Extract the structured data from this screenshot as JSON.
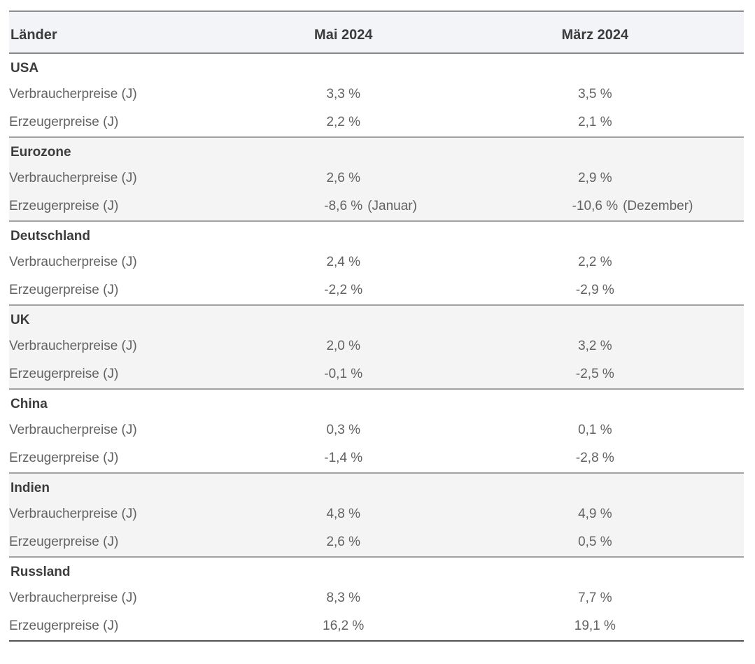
{
  "colors": {
    "header_bg": "#f3f4f8",
    "section_highlight_bg": "#f4f4f4",
    "top_border": "#8c8d90",
    "header_underline": "#85868a",
    "section_divider": "#a2a2a4",
    "bottom_border": "#515254",
    "heading_text": "#3c3c3d",
    "data_text": "#626265"
  },
  "chart_data": {
    "type": "table",
    "columns": [
      "Länder",
      "Mai 2024",
      "März 2024"
    ],
    "sections": [
      {
        "country": "USA",
        "highlighted": false,
        "rows": [
          {
            "label": "Verbraucherpreise (J)",
            "mai": "3,3 %",
            "maerz": "3,5 %"
          },
          {
            "label": "Erzeugerpreise (J)",
            "mai": "2,2 %",
            "maerz": "2,1 %"
          }
        ]
      },
      {
        "country": "Eurozone",
        "highlighted": true,
        "rows": [
          {
            "label": "Verbraucherpreise (J)",
            "mai": "2,6 %",
            "maerz": "2,9 %"
          },
          {
            "label": "Erzeugerpreise (J)",
            "mai": "-8,6 %",
            "mai_note": "(Januar)",
            "maerz": "-10,6 %",
            "maerz_note": "(Dezember)"
          }
        ]
      },
      {
        "country": "Deutschland",
        "highlighted": false,
        "rows": [
          {
            "label": "Verbraucherpreise (J)",
            "mai": "2,4 %",
            "maerz": "2,2 %"
          },
          {
            "label": "Erzeugerpreise (J)",
            "mai": "-2,2 %",
            "maerz": "-2,9 %"
          }
        ]
      },
      {
        "country": "UK",
        "highlighted": true,
        "rows": [
          {
            "label": "Verbraucherpreise (J)",
            "mai": "2,0 %",
            "maerz": "3,2 %"
          },
          {
            "label": "Erzeugerpreise (J)",
            "mai": "-0,1 %",
            "maerz": "-2,5 %"
          }
        ]
      },
      {
        "country": "China",
        "highlighted": false,
        "rows": [
          {
            "label": "Verbraucherpreise (J)",
            "mai": "0,3 %",
            "maerz": "0,1 %"
          },
          {
            "label": "Erzeugerpreise (J)",
            "mai": "-1,4 %",
            "maerz": "-2,8 %"
          }
        ]
      },
      {
        "country": "Indien",
        "highlighted": true,
        "rows": [
          {
            "label": "Verbraucherpreise (J)",
            "mai": "4,8 %",
            "maerz": "4,9 %"
          },
          {
            "label": "Erzeugerpreise (J)",
            "mai": "2,6 %",
            "maerz": "0,5 %"
          }
        ]
      },
      {
        "country": "Russland",
        "highlighted": false,
        "rows": [
          {
            "label": "Verbraucherpreise (J)",
            "mai": "8,3 %",
            "maerz": "7,7 %"
          },
          {
            "label": "Erzeugerpreise (J)",
            "mai": "16,2 %",
            "maerz": "19,1 %"
          }
        ]
      }
    ]
  }
}
